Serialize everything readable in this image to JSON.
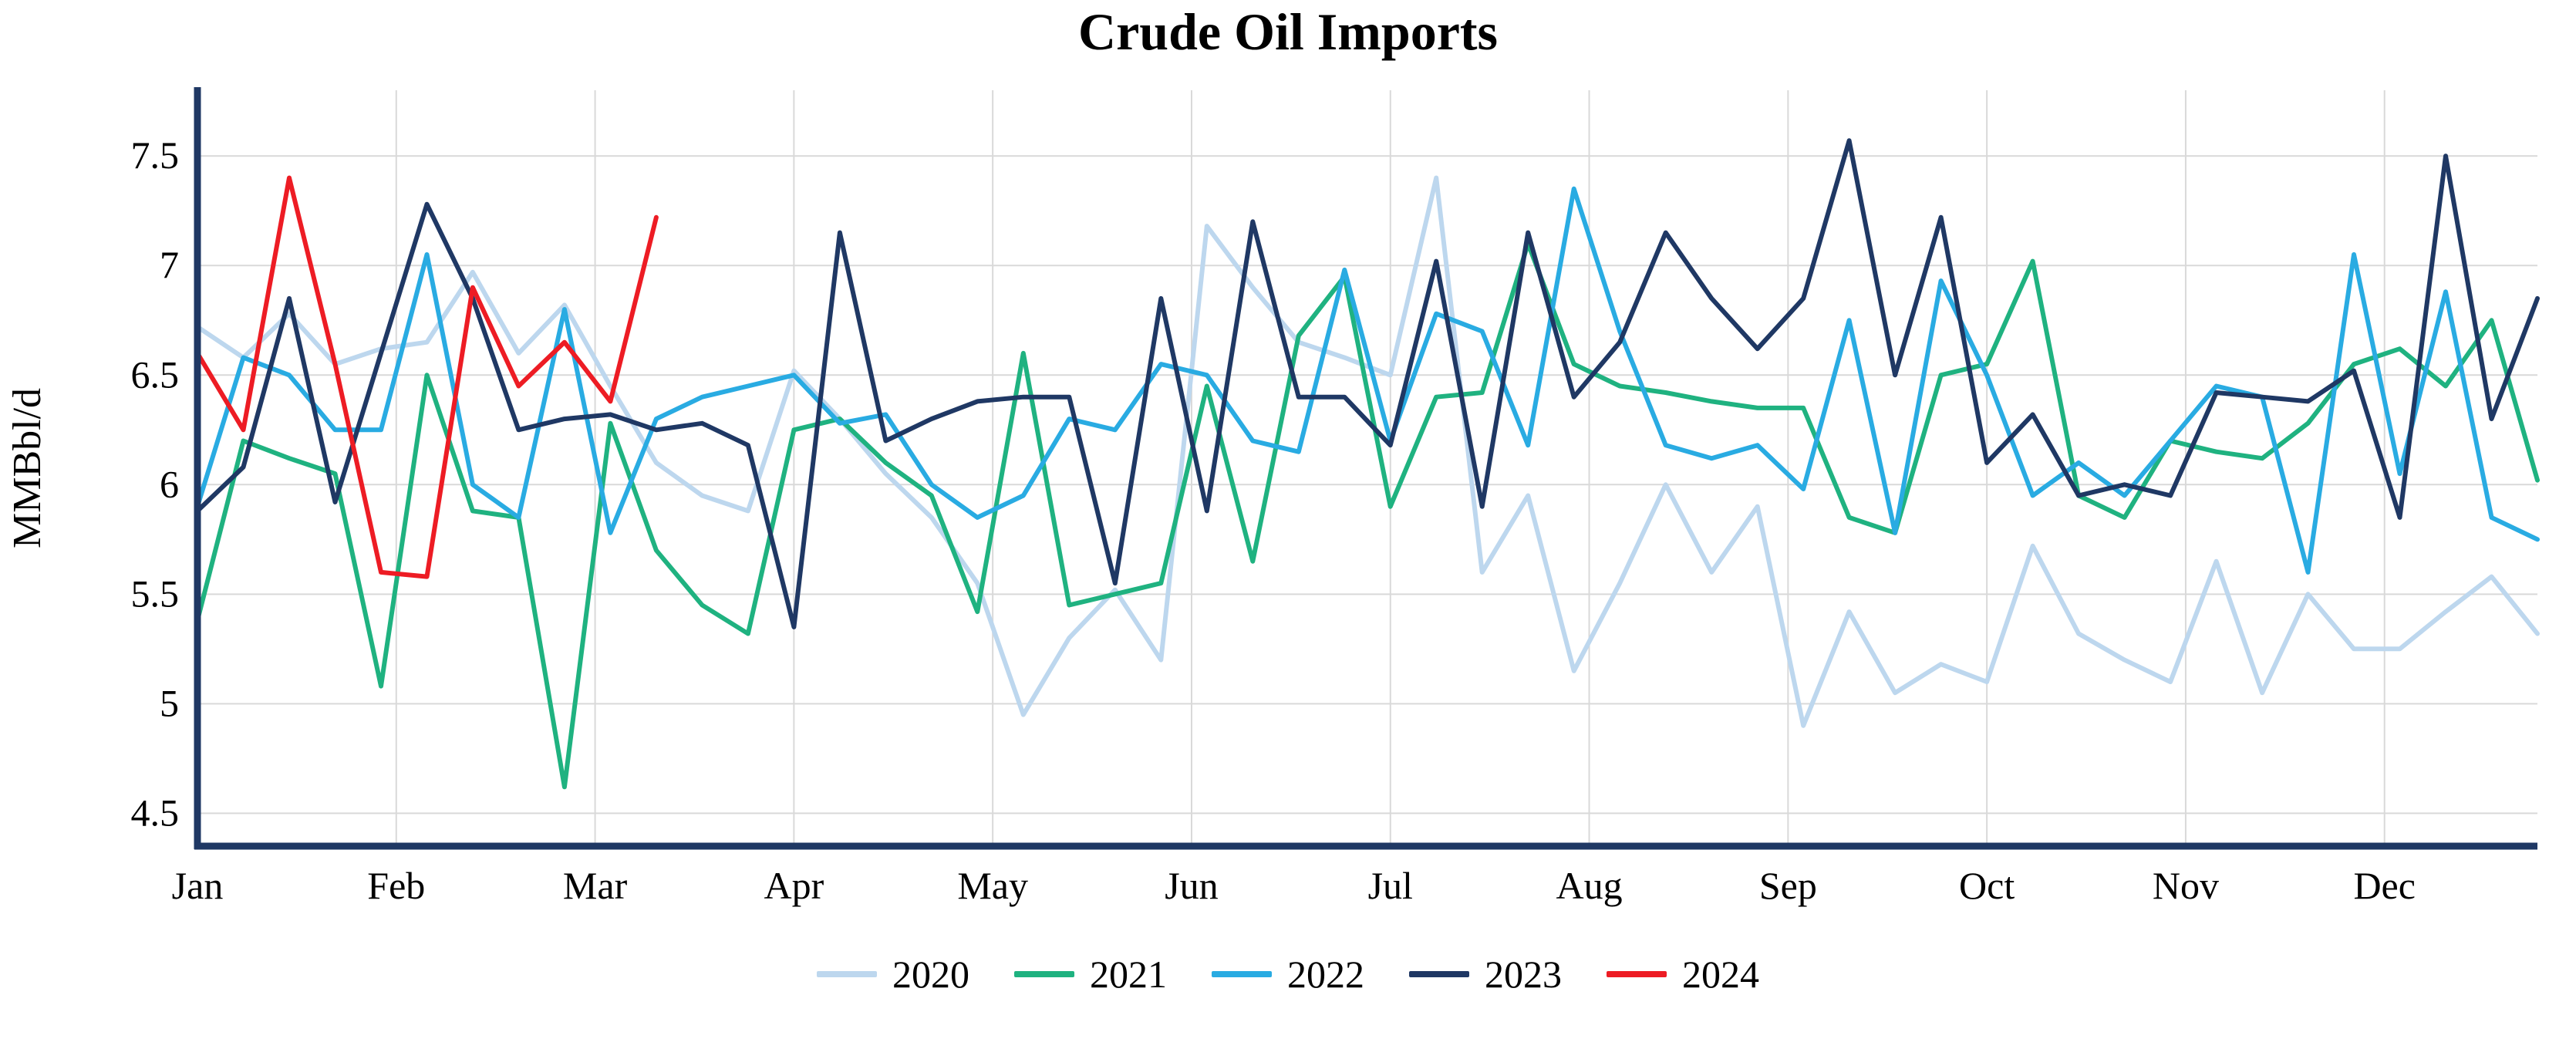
{
  "chart_data": {
    "type": "line",
    "title": "Crude Oil Imports",
    "xlabel": "",
    "ylabel": "MMBbl/d",
    "ylim": [
      4.35,
      7.8
    ],
    "yticks": [
      4.5,
      5,
      5.5,
      6,
      6.5,
      7,
      7.5
    ],
    "months": [
      "Jan",
      "Feb",
      "Mar",
      "Apr",
      "May",
      "Jun",
      "Jul",
      "Aug",
      "Sep",
      "Oct",
      "Nov",
      "Dec"
    ],
    "weeks_per_year": 52,
    "grid": true,
    "legend_position": "bottom-center",
    "axis_color": "#1F3864",
    "grid_color": "#D9D9D9",
    "series": [
      {
        "name": "2020",
        "color": "#BDD7EE",
        "values": [
          6.72,
          6.58,
          6.78,
          6.55,
          6.62,
          6.65,
          6.97,
          6.6,
          6.82,
          6.45,
          6.1,
          5.95,
          5.88,
          6.52,
          6.3,
          6.05,
          5.85,
          5.55,
          4.95,
          5.3,
          5.52,
          5.2,
          7.18,
          6.9,
          6.65,
          6.58,
          6.5,
          7.4,
          5.6,
          5.95,
          5.15,
          5.55,
          6.0,
          5.6,
          5.9,
          4.9,
          5.42,
          5.05,
          5.18,
          5.1,
          5.72,
          5.32,
          5.2,
          5.1,
          5.65,
          5.05,
          5.5,
          5.25,
          5.25,
          5.42,
          5.58,
          5.32
        ]
      },
      {
        "name": "2021",
        "color": "#1FB280",
        "values": [
          5.38,
          6.2,
          6.12,
          6.05,
          5.08,
          6.5,
          5.88,
          5.85,
          4.62,
          6.28,
          5.7,
          5.45,
          5.32,
          6.25,
          6.3,
          6.1,
          5.95,
          5.42,
          6.6,
          5.45,
          5.5,
          5.55,
          6.45,
          5.65,
          6.68,
          6.95,
          5.9,
          6.4,
          6.42,
          7.1,
          6.55,
          6.45,
          6.42,
          6.38,
          6.35,
          6.35,
          5.85,
          5.78,
          6.5,
          6.55,
          7.02,
          5.95,
          5.85,
          6.2,
          6.15,
          6.12,
          6.28,
          6.55,
          6.62,
          6.45,
          6.75,
          6.02
        ]
      },
      {
        "name": "2022",
        "color": "#29ABE2",
        "values": [
          5.9,
          6.58,
          6.5,
          6.25,
          6.25,
          7.05,
          6.0,
          5.85,
          6.8,
          5.78,
          6.3,
          6.4,
          6.45,
          6.5,
          6.28,
          6.32,
          6.0,
          5.85,
          5.95,
          6.3,
          6.25,
          6.55,
          6.5,
          6.2,
          6.15,
          6.98,
          6.2,
          6.78,
          6.7,
          6.18,
          7.35,
          6.7,
          6.18,
          6.12,
          6.18,
          5.98,
          6.75,
          5.78,
          6.93,
          6.5,
          5.95,
          6.1,
          5.95,
          6.2,
          6.45,
          6.4,
          5.6,
          7.05,
          6.05,
          6.88,
          5.85,
          5.75
        ]
      },
      {
        "name": "2023",
        "color": "#1F3864",
        "values": [
          5.88,
          6.08,
          6.85,
          5.92,
          6.6,
          7.28,
          6.85,
          6.25,
          6.3,
          6.32,
          6.25,
          6.28,
          6.18,
          5.35,
          7.15,
          6.2,
          6.3,
          6.38,
          6.4,
          6.4,
          5.55,
          6.85,
          5.88,
          7.2,
          6.4,
          6.4,
          6.18,
          7.02,
          5.9,
          7.15,
          6.4,
          6.65,
          7.15,
          6.85,
          6.62,
          6.85,
          7.57,
          6.5,
          7.22,
          6.1,
          6.32,
          5.95,
          6.0,
          5.95,
          6.42,
          6.4,
          6.38,
          6.52,
          5.85,
          7.5,
          6.3,
          6.85
        ]
      },
      {
        "name": "2024",
        "color": "#ED1C24",
        "values": [
          6.6,
          6.25,
          7.4,
          6.55,
          5.6,
          5.58,
          6.9,
          6.45,
          6.65,
          6.38,
          7.22
        ]
      }
    ]
  }
}
